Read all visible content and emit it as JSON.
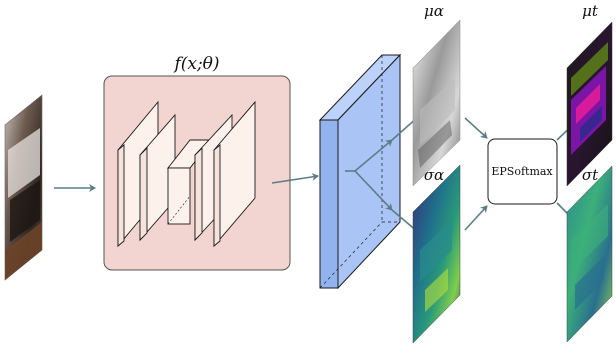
{
  "network": {
    "label": "f(x;θ)"
  },
  "outputs": {
    "mu_alpha": "μα",
    "sigma_alpha": "σα",
    "mu_t": "μt",
    "sigma_t": "σt"
  },
  "softmax": {
    "label": "EPSoftmax"
  },
  "colors": {
    "network_box_fill": "#f2d5d0",
    "network_box_stroke": "#555555",
    "layer_fill": "#fdf1ec",
    "feature_map_fill": "#a9c4f5",
    "feature_map_stroke": "#1a1a1a",
    "arrow": "#5b7d86",
    "mask_purple": "#7a15a6",
    "mask_magenta": "#d81b9a",
    "viridis_dark": "#2a1f5e",
    "viridis_mid": "#2a8c8b",
    "viridis_light": "#b5df3a"
  },
  "icons": {
    "input_image": "photo-of-bed-room",
    "mu_alpha_map": "grayscale-alpha-map",
    "sigma_alpha_map": "viridis-uncertainty-map",
    "mu_t_map": "segmentation-mask",
    "sigma_t_map": "viridis-uncertainty-map"
  }
}
